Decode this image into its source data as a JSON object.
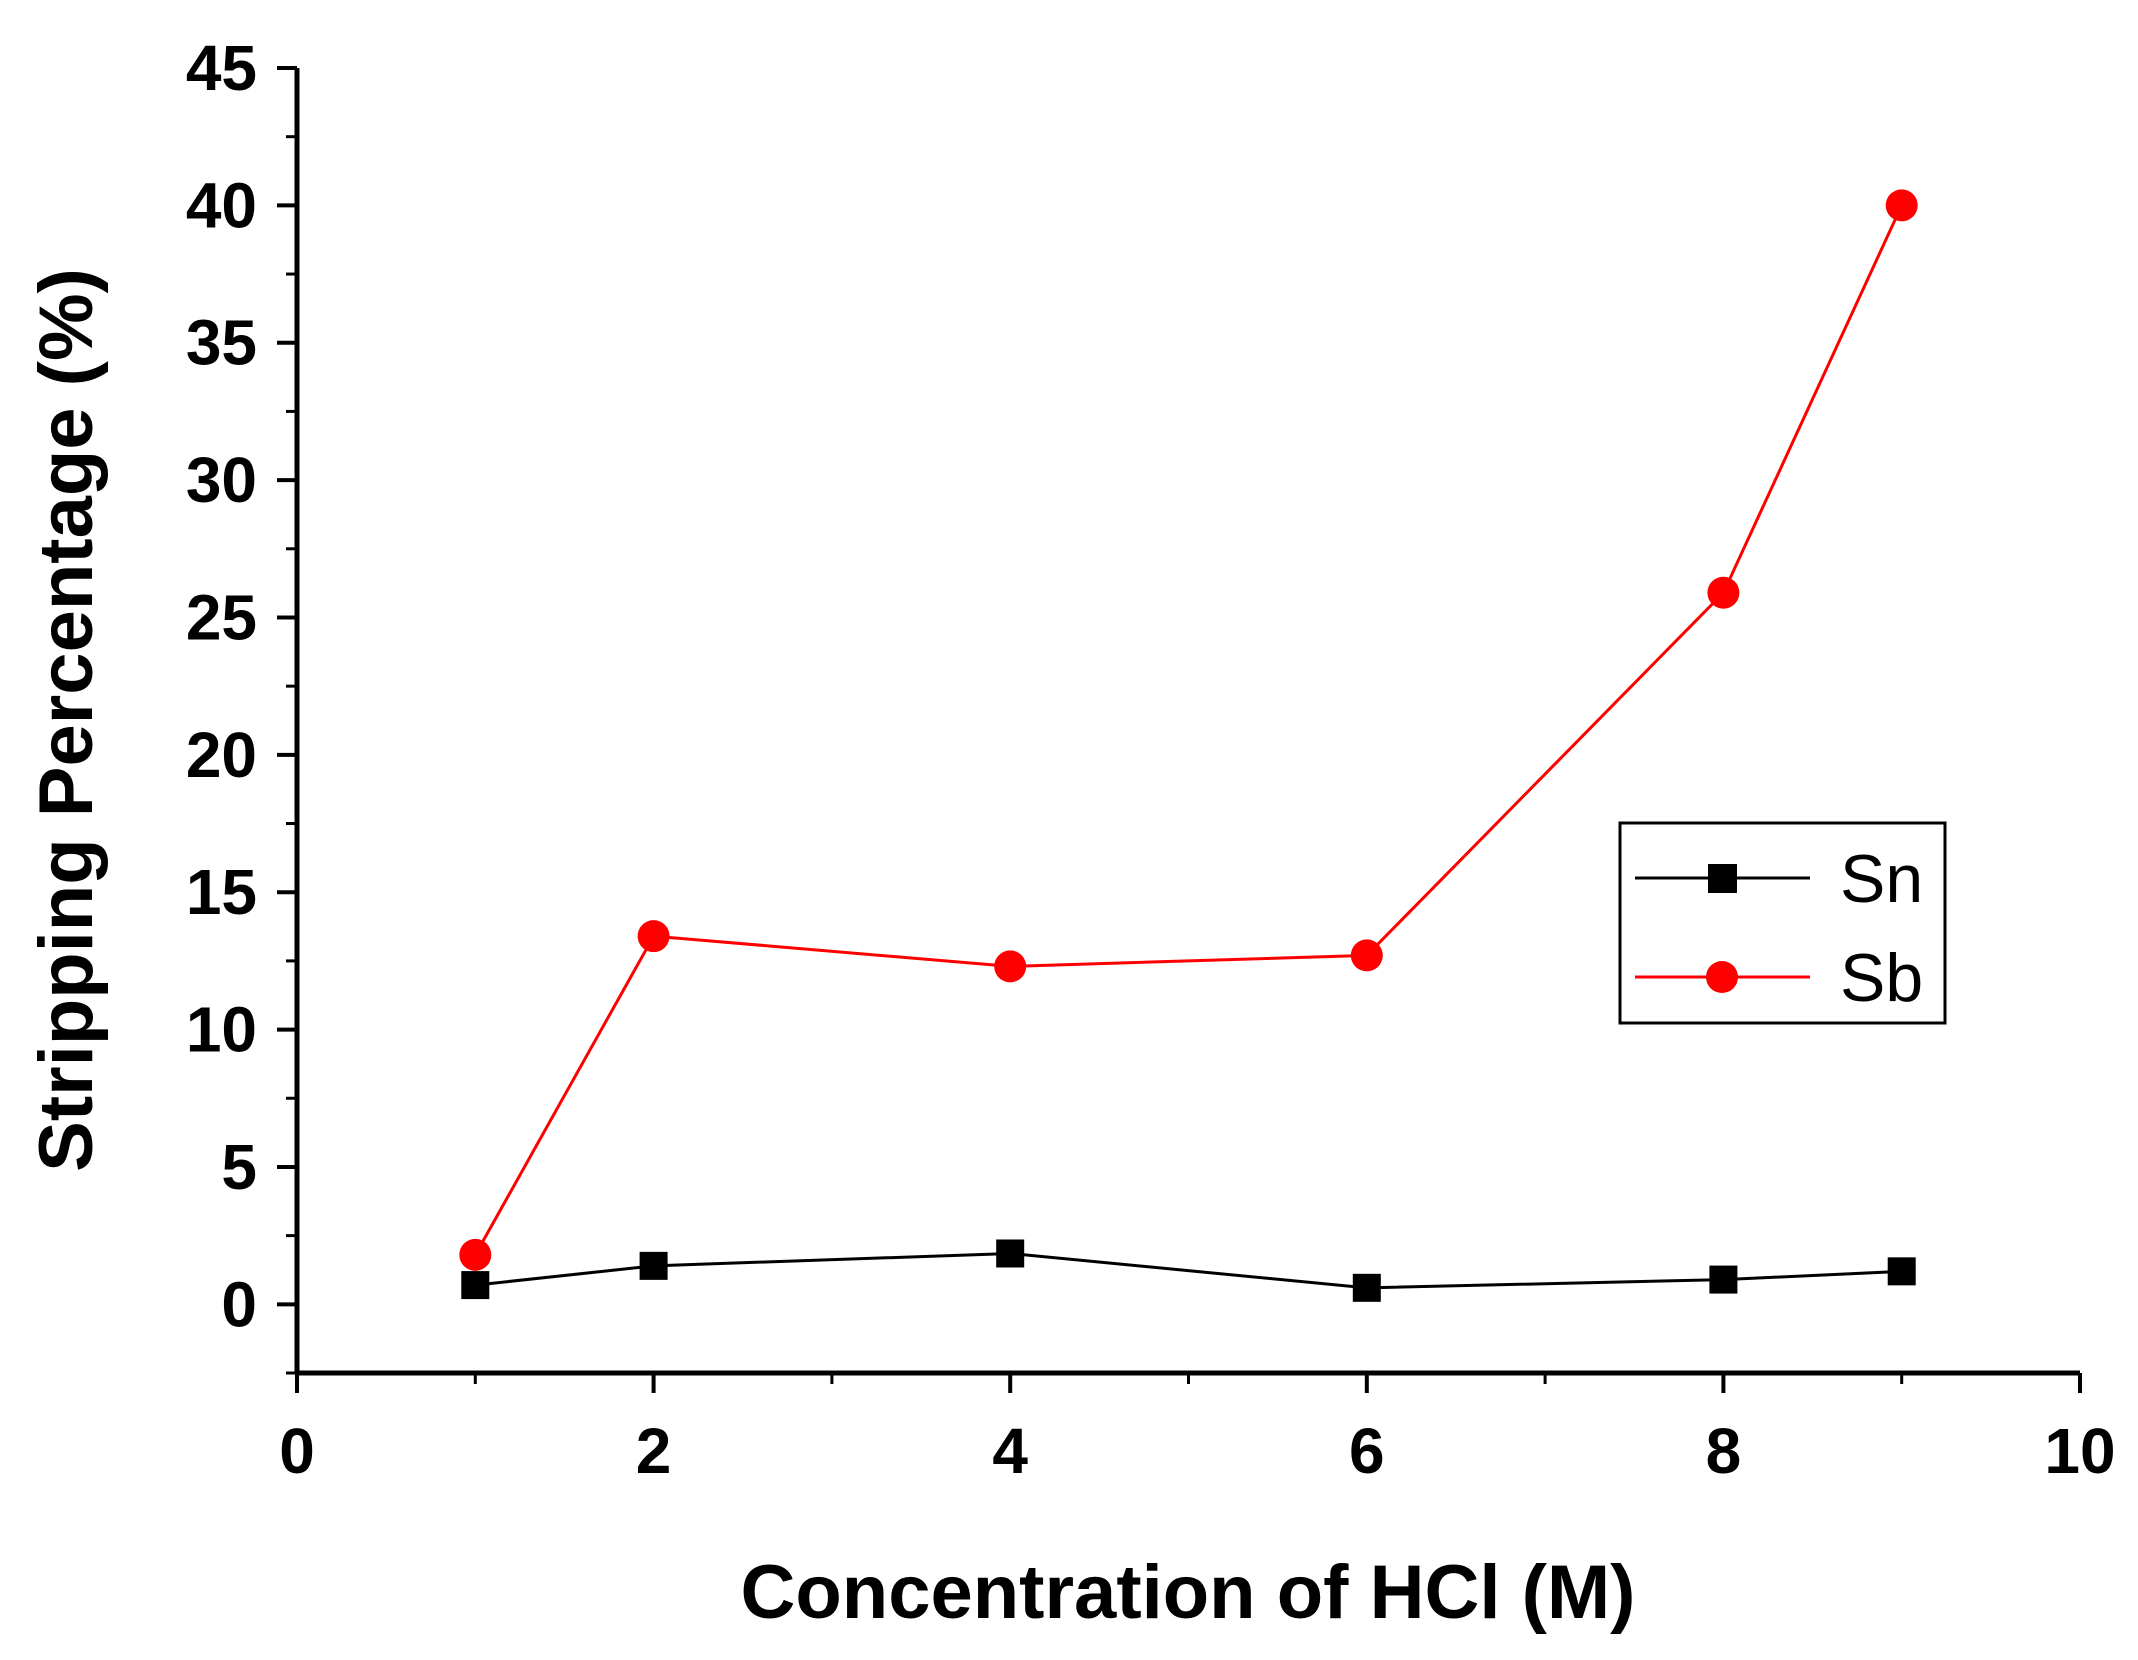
{
  "chart_data": {
    "type": "line",
    "title": "",
    "xlabel": "Concentration of HCl (M)",
    "ylabel": "Stripping Percentage (%)",
    "xlim": [
      0,
      10
    ],
    "ylim": [
      -2.5,
      45
    ],
    "x_ticks": [
      "0",
      "2",
      "4",
      "6",
      "8",
      "10"
    ],
    "y_ticks": [
      "0",
      "5",
      "10",
      "15",
      "20",
      "25",
      "30",
      "35",
      "40",
      "45"
    ],
    "grid": false,
    "legend_position": "center-right",
    "series": [
      {
        "name": "Sn",
        "color": "#000000",
        "marker": "square",
        "x": [
          1,
          2,
          4,
          6,
          8,
          9
        ],
        "y": [
          0.7,
          1.4,
          1.85,
          0.6,
          0.9,
          1.2
        ]
      },
      {
        "name": "Sb",
        "color": "#ff0000",
        "marker": "circle",
        "x": [
          1,
          2,
          4,
          6,
          8,
          9
        ],
        "y": [
          1.8,
          13.4,
          12.3,
          12.7,
          25.9,
          40.0
        ]
      }
    ]
  }
}
